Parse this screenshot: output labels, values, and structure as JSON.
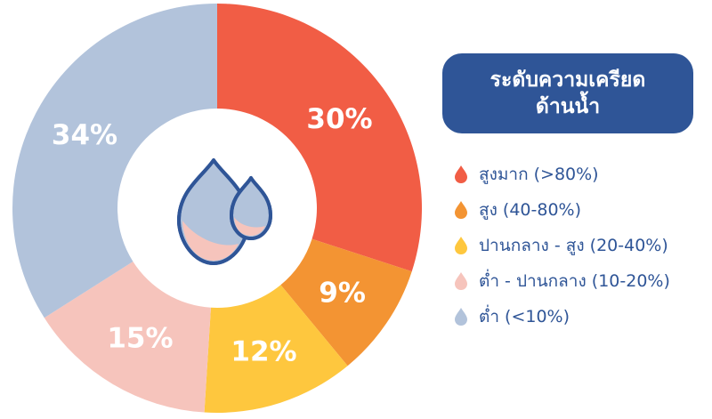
{
  "chart_data": {
    "type": "pie",
    "title": "ระดับความเครียดด้านน้ำ",
    "categories": [
      "สูงมาก (>80%)",
      "สูง (40-80%)",
      "ปานกลาง - สูง (20-40%)",
      "ต่ำ - ปานกลาง (10-20%)",
      "ต่ำ (<10%)"
    ],
    "values": [
      30,
      9,
      12,
      15,
      34
    ],
    "value_labels": [
      "30%",
      "9%",
      "12%",
      "15%",
      "34%"
    ],
    "colors": [
      "#f15d45",
      "#f39433",
      "#fec73e",
      "#f6c4bc",
      "#b2c3db"
    ],
    "legend_position": "right",
    "donut": true
  },
  "legend": {
    "title_line1": "ระดับความเครียด",
    "title_line2": "ด้านน้ำ"
  },
  "center_icon": "water-drops-icon"
}
